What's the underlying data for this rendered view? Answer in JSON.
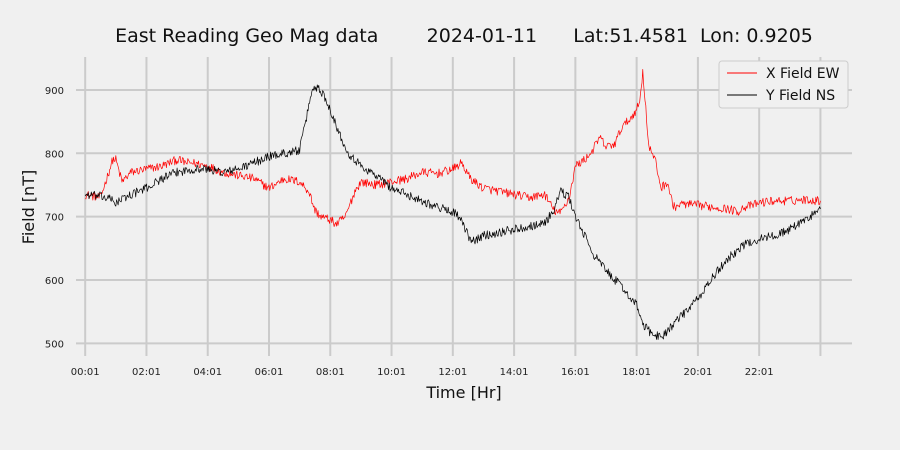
{
  "chart_data": {
    "type": "line",
    "title": "East Reading Geo Mag data        2024-01-11      Lat:51.4581  Lon: 0.9205",
    "xlabel": "Time  [Hr]",
    "ylabel": "Field  [nT]",
    "xlim": [
      -0.3,
      25.03
    ],
    "ylim": [
      480,
      952
    ],
    "grid": true,
    "legend_position": "top-right",
    "x_ticks": [
      {
        "value": 0,
        "label": "00:01"
      },
      {
        "value": 2,
        "label": "02:01"
      },
      {
        "value": 4,
        "label": "04:01"
      },
      {
        "value": 6,
        "label": "06:01"
      },
      {
        "value": 8,
        "label": "08:01"
      },
      {
        "value": 10,
        "label": "10:01"
      },
      {
        "value": 12,
        "label": "12:01"
      },
      {
        "value": 14,
        "label": "14:01"
      },
      {
        "value": 16,
        "label": "16:01"
      },
      {
        "value": 18,
        "label": "18:01"
      },
      {
        "value": 20,
        "label": "20:01"
      },
      {
        "value": 22,
        "label": "22:01"
      },
      {
        "value": 24,
        "label": ""
      }
    ],
    "y_ticks": [
      500,
      600,
      700,
      800,
      900
    ],
    "series": [
      {
        "name": "X Field EW",
        "color": "#ff0000",
        "x": [
          0,
          0.5,
          0.7,
          0.9,
          1.0,
          1.2,
          1.5,
          2.0,
          2.5,
          3.0,
          3.3,
          3.5,
          4.0,
          4.5,
          5.0,
          5.5,
          6.0,
          6.5,
          7.0,
          7.3,
          7.5,
          7.7,
          8.0,
          8.2,
          8.5,
          8.8,
          9.0,
          9.5,
          10.0,
          10.5,
          11.0,
          11.5,
          12.0,
          12.3,
          12.5,
          12.7,
          13.0,
          13.5,
          14.0,
          14.5,
          15.0,
          15.3,
          15.5,
          15.8,
          16.0,
          16.3,
          16.5,
          16.8,
          17.0,
          17.3,
          17.5,
          17.8,
          18.0,
          18.1,
          18.2,
          18.4,
          18.6,
          18.8,
          19.0,
          19.2,
          19.5,
          20.0,
          20.5,
          21.0,
          21.3,
          21.5,
          21.8,
          22.0,
          22.5,
          23.0,
          23.5,
          24.0
        ],
        "values": [
          735,
          730,
          760,
          790,
          790,
          755,
          770,
          775,
          780,
          790,
          785,
          785,
          780,
          770,
          765,
          760,
          745,
          760,
          755,
          740,
          710,
          700,
          695,
          688,
          700,
          740,
          755,
          750,
          755,
          760,
          770,
          768,
          775,
          785,
          765,
          755,
          745,
          740,
          735,
          730,
          735,
          710,
          705,
          730,
          780,
          790,
          800,
          825,
          810,
          815,
          840,
          855,
          870,
          880,
          930,
          810,
          790,
          745,
          755,
          715,
          720,
          718,
          715,
          712,
          708,
          715,
          718,
          722,
          725,
          725,
          727,
          725
        ]
      },
      {
        "name": "Y Field NS",
        "color": "#000000",
        "x": [
          0,
          0.5,
          0.8,
          1.0,
          1.5,
          2.0,
          2.5,
          3.0,
          3.5,
          4.0,
          4.5,
          5.0,
          5.5,
          6.0,
          6.5,
          7.0,
          7.2,
          7.4,
          7.6,
          7.8,
          8.0,
          8.3,
          8.6,
          9.0,
          9.5,
          10.0,
          10.5,
          11.0,
          11.5,
          12.0,
          12.2,
          12.4,
          12.6,
          13.0,
          13.5,
          14.0,
          14.5,
          15.0,
          15.3,
          15.5,
          15.8,
          16.0,
          16.3,
          16.6,
          17.0,
          17.5,
          18.0,
          18.2,
          18.5,
          18.8,
          19.0,
          19.5,
          20.0,
          20.5,
          21.0,
          21.5,
          22.0,
          22.5,
          23.0,
          23.5,
          24.0
        ],
        "values": [
          735,
          732,
          728,
          722,
          735,
          745,
          760,
          770,
          775,
          775,
          770,
          775,
          785,
          795,
          800,
          805,
          850,
          900,
          905,
          890,
          870,
          830,
          800,
          780,
          765,
          745,
          735,
          725,
          715,
          708,
          700,
          680,
          660,
          670,
          675,
          680,
          685,
          690,
          710,
          740,
          730,
          700,
          670,
          640,
          615,
          590,
          560,
          530,
          515,
          510,
          520,
          545,
          570,
          605,
          635,
          655,
          665,
          670,
          680,
          695,
          712
        ]
      }
    ]
  }
}
